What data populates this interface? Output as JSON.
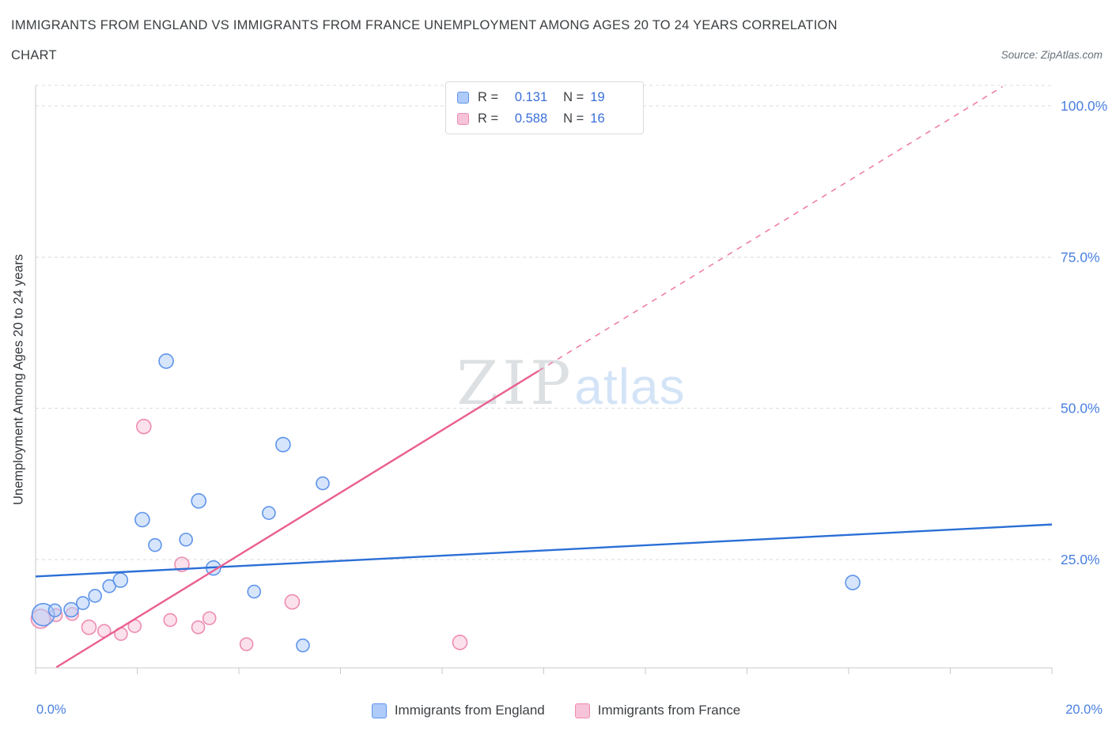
{
  "header": {
    "title_line1": "IMMIGRANTS FROM ENGLAND VS IMMIGRANTS FROM FRANCE UNEMPLOYMENT AMONG AGES 20 TO 24 YEARS CORRELATION",
    "title_line2": "CHART",
    "source": "Source: ZipAtlas.com"
  },
  "legend_box": {
    "rows": [
      {
        "r_label": "R =",
        "r_value": "0.131",
        "n_label": "N =",
        "n_value": "19"
      },
      {
        "r_label": "R =",
        "r_value": "0.588",
        "n_label": "N =",
        "n_value": "16"
      }
    ]
  },
  "bottom_legend": {
    "items": [
      {
        "label": "Immigrants from England"
      },
      {
        "label": "Immigrants from France"
      }
    ]
  },
  "chart_data": {
    "type": "scatter",
    "title": "Immigrants from England vs Immigrants from France Unemployment Among Ages 20 to 24 years Correlation Chart",
    "xlabel": "",
    "ylabel": "Unemployment Among Ages 20 to 24 years",
    "xlim": [
      0,
      20
    ],
    "ylim": [
      7.1,
      103.4
    ],
    "x_edge_labels": [
      "0.0%",
      "20.0%"
    ],
    "x_tick_values": [
      0,
      2,
      4,
      6,
      8,
      10,
      12,
      14,
      16,
      18,
      20
    ],
    "y_gridlines": [
      25,
      50,
      75,
      100
    ],
    "y_tick_labels": [
      {
        "value": 100,
        "label": "100.0%"
      },
      {
        "value": 75,
        "label": "75.0%"
      },
      {
        "value": 50,
        "label": "50.0%"
      },
      {
        "value": 25,
        "label": "25.0%"
      }
    ],
    "grid": true,
    "legend_position": "bottom",
    "watermark": {
      "part1": "ZIP",
      "part2": "atlas"
    },
    "colors": {
      "grid": "#dadcde",
      "axis": "#c6c9cc",
      "axis_labels": "#4a80e0",
      "legend_value": "#3a6fd8",
      "title_text": "#3c4043",
      "watermark_zip": "#c3c7cc",
      "watermark_atlas": "#c3d9f5"
    },
    "series": [
      {
        "key": "england",
        "name": "Immigrants from England",
        "r": "0.131",
        "n": "19",
        "point_fill": "#aecbfa",
        "point_stroke": "#5f94ea",
        "line_color": "#2a6fd6",
        "points": [
          [
            0.15,
            15.9,
            14
          ],
          [
            0.38,
            16.6,
            8
          ],
          [
            0.7,
            16.7,
            9
          ],
          [
            0.93,
            17.8,
            8
          ],
          [
            1.17,
            19.0,
            8
          ],
          [
            1.45,
            20.6,
            8
          ],
          [
            1.67,
            21.6,
            9
          ],
          [
            2.1,
            31.6,
            9
          ],
          [
            2.35,
            27.4,
            8
          ],
          [
            2.57,
            57.8,
            9
          ],
          [
            2.96,
            28.3,
            8
          ],
          [
            3.21,
            34.7,
            9
          ],
          [
            3.5,
            23.6,
            9
          ],
          [
            4.3,
            19.7,
            8
          ],
          [
            4.59,
            32.7,
            8
          ],
          [
            4.87,
            44.0,
            9
          ],
          [
            5.26,
            10.8,
            8
          ],
          [
            5.65,
            37.6,
            8
          ],
          [
            16.08,
            21.2,
            9
          ]
        ],
        "trendline": {
          "start": [
            0,
            22.2
          ],
          "end": [
            20,
            30.8
          ]
        }
      },
      {
        "key": "france",
        "name": "Immigrants from France",
        "r": "0.588",
        "n": "16",
        "point_fill": "#f7c3d8",
        "point_stroke": "#ee8cb1",
        "line_color": "#ea5f90",
        "points": [
          [
            0.1,
            15.2,
            12
          ],
          [
            0.4,
            15.8,
            8
          ],
          [
            0.72,
            16.0,
            8
          ],
          [
            1.05,
            13.8,
            9
          ],
          [
            1.35,
            13.2,
            8
          ],
          [
            1.68,
            12.7,
            8
          ],
          [
            1.95,
            14.0,
            8
          ],
          [
            2.13,
            47.0,
            9
          ],
          [
            2.65,
            15.0,
            8
          ],
          [
            2.88,
            24.2,
            9
          ],
          [
            3.2,
            13.8,
            8
          ],
          [
            3.42,
            15.3,
            8
          ],
          [
            4.15,
            11.0,
            8
          ],
          [
            5.05,
            18.0,
            9
          ],
          [
            8.35,
            11.3,
            9
          ],
          [
            9.85,
            102.0,
            9
          ]
        ],
        "trendline": {
          "start": [
            0.41,
            7.2
          ],
          "end": [
            9.9,
            56.2
          ]
        },
        "trendline_dashed": {
          "start": [
            9.9,
            56.2
          ],
          "end": [
            19.03,
            103.2
          ]
        }
      }
    ]
  }
}
